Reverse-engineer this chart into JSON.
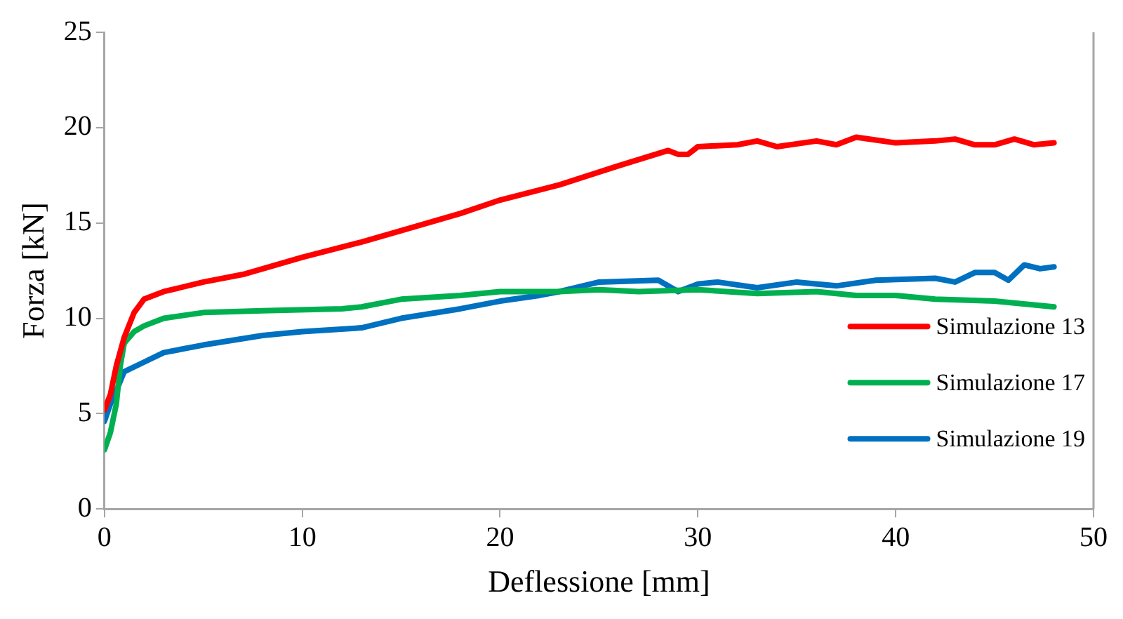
{
  "chart_data": {
    "type": "line",
    "xlabel": "Deflessione [mm]",
    "ylabel": "Forza [kN]",
    "xlim": [
      0,
      50
    ],
    "xticks": [
      0,
      10,
      20,
      30,
      40,
      50
    ],
    "ylim": [
      0,
      25
    ],
    "yticks": [
      0,
      5,
      10,
      15,
      20,
      25
    ],
    "grid": false,
    "legend": "bottom right",
    "marker": "none",
    "line_style": "solid",
    "series": [
      {
        "name": "Simulazione 13",
        "color": "#ff0000",
        "x": [
          0,
          0.3,
          0.6,
          1,
          1.5,
          2,
          3,
          5,
          7,
          10,
          13,
          15,
          18,
          20,
          23,
          26,
          28.5,
          29,
          29.5,
          30,
          32,
          33,
          34,
          36,
          37,
          38,
          40,
          42,
          43,
          44,
          45,
          46,
          47,
          48
        ],
        "values": [
          5.2,
          6,
          7.5,
          9,
          10.3,
          11,
          11.4,
          11.9,
          12.3,
          13.2,
          14,
          14.6,
          15.5,
          16.2,
          17,
          18,
          18.8,
          18.6,
          18.6,
          19,
          19.1,
          19.3,
          19,
          19.3,
          19.1,
          19.5,
          19.2,
          19.3,
          19.4,
          19.1,
          19.1,
          19.4,
          19.1,
          19.2
        ]
      },
      {
        "name": "Simulazione 17",
        "color": "#00b050",
        "x": [
          0,
          0.3,
          0.6,
          0.8,
          1,
          1.5,
          2,
          3,
          5,
          8,
          12,
          13,
          15,
          18,
          20,
          23,
          25,
          27,
          30,
          33,
          36,
          38,
          40,
          42,
          45,
          47,
          48
        ],
        "values": [
          3.1,
          4,
          5.5,
          7.5,
          8.7,
          9.3,
          9.6,
          10,
          10.3,
          10.4,
          10.5,
          10.6,
          11,
          11.2,
          11.4,
          11.4,
          11.5,
          11.4,
          11.5,
          11.3,
          11.4,
          11.2,
          11.2,
          11,
          10.9,
          10.7,
          10.6
        ]
      },
      {
        "name": "Simulazione 19",
        "color": "#0070c0",
        "x": [
          0,
          0.3,
          0.6,
          1,
          2,
          3,
          5,
          8,
          10,
          13,
          15,
          18,
          20,
          22,
          23,
          25,
          28,
          29,
          30,
          31,
          33,
          35,
          37,
          39,
          42,
          43,
          44,
          45,
          45.7,
          46.5,
          47.3,
          48
        ],
        "values": [
          4.6,
          5.5,
          6.2,
          7.2,
          7.7,
          8.2,
          8.6,
          9.1,
          9.3,
          9.5,
          10,
          10.5,
          10.9,
          11.2,
          11.4,
          11.9,
          12,
          11.4,
          11.8,
          11.9,
          11.6,
          11.9,
          11.7,
          12,
          12.1,
          11.9,
          12.4,
          12.4,
          12,
          12.8,
          12.6,
          12.7
        ]
      }
    ]
  }
}
